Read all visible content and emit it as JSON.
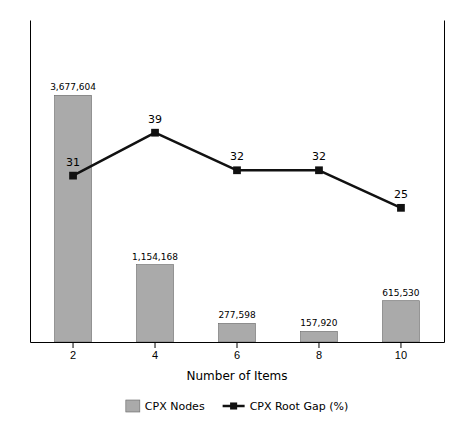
{
  "chart_data": {
    "type": "bar",
    "categories": [
      "2",
      "4",
      "6",
      "8",
      "10"
    ],
    "xlabel": "Number of Items",
    "series": [
      {
        "name": "CPX Nodes",
        "type": "bar",
        "color": "#aaaaaa",
        "values": [
          3677604,
          1154168,
          277598,
          157920,
          615530
        ],
        "value_labels": [
          "3,677,604",
          "1,154,168",
          "277,598",
          "157,920",
          "615,530"
        ]
      },
      {
        "name": "CPX Root Gap (%)",
        "type": "line",
        "color": "#111111",
        "marker": "square",
        "axis": "y2",
        "values": [
          31,
          39,
          32,
          32,
          25
        ]
      }
    ],
    "ylim": [
      0,
      4800000
    ],
    "y2lim": [
      0,
      60
    ],
    "data_labels": true,
    "tick_labels": "x",
    "legend": "bottom"
  }
}
